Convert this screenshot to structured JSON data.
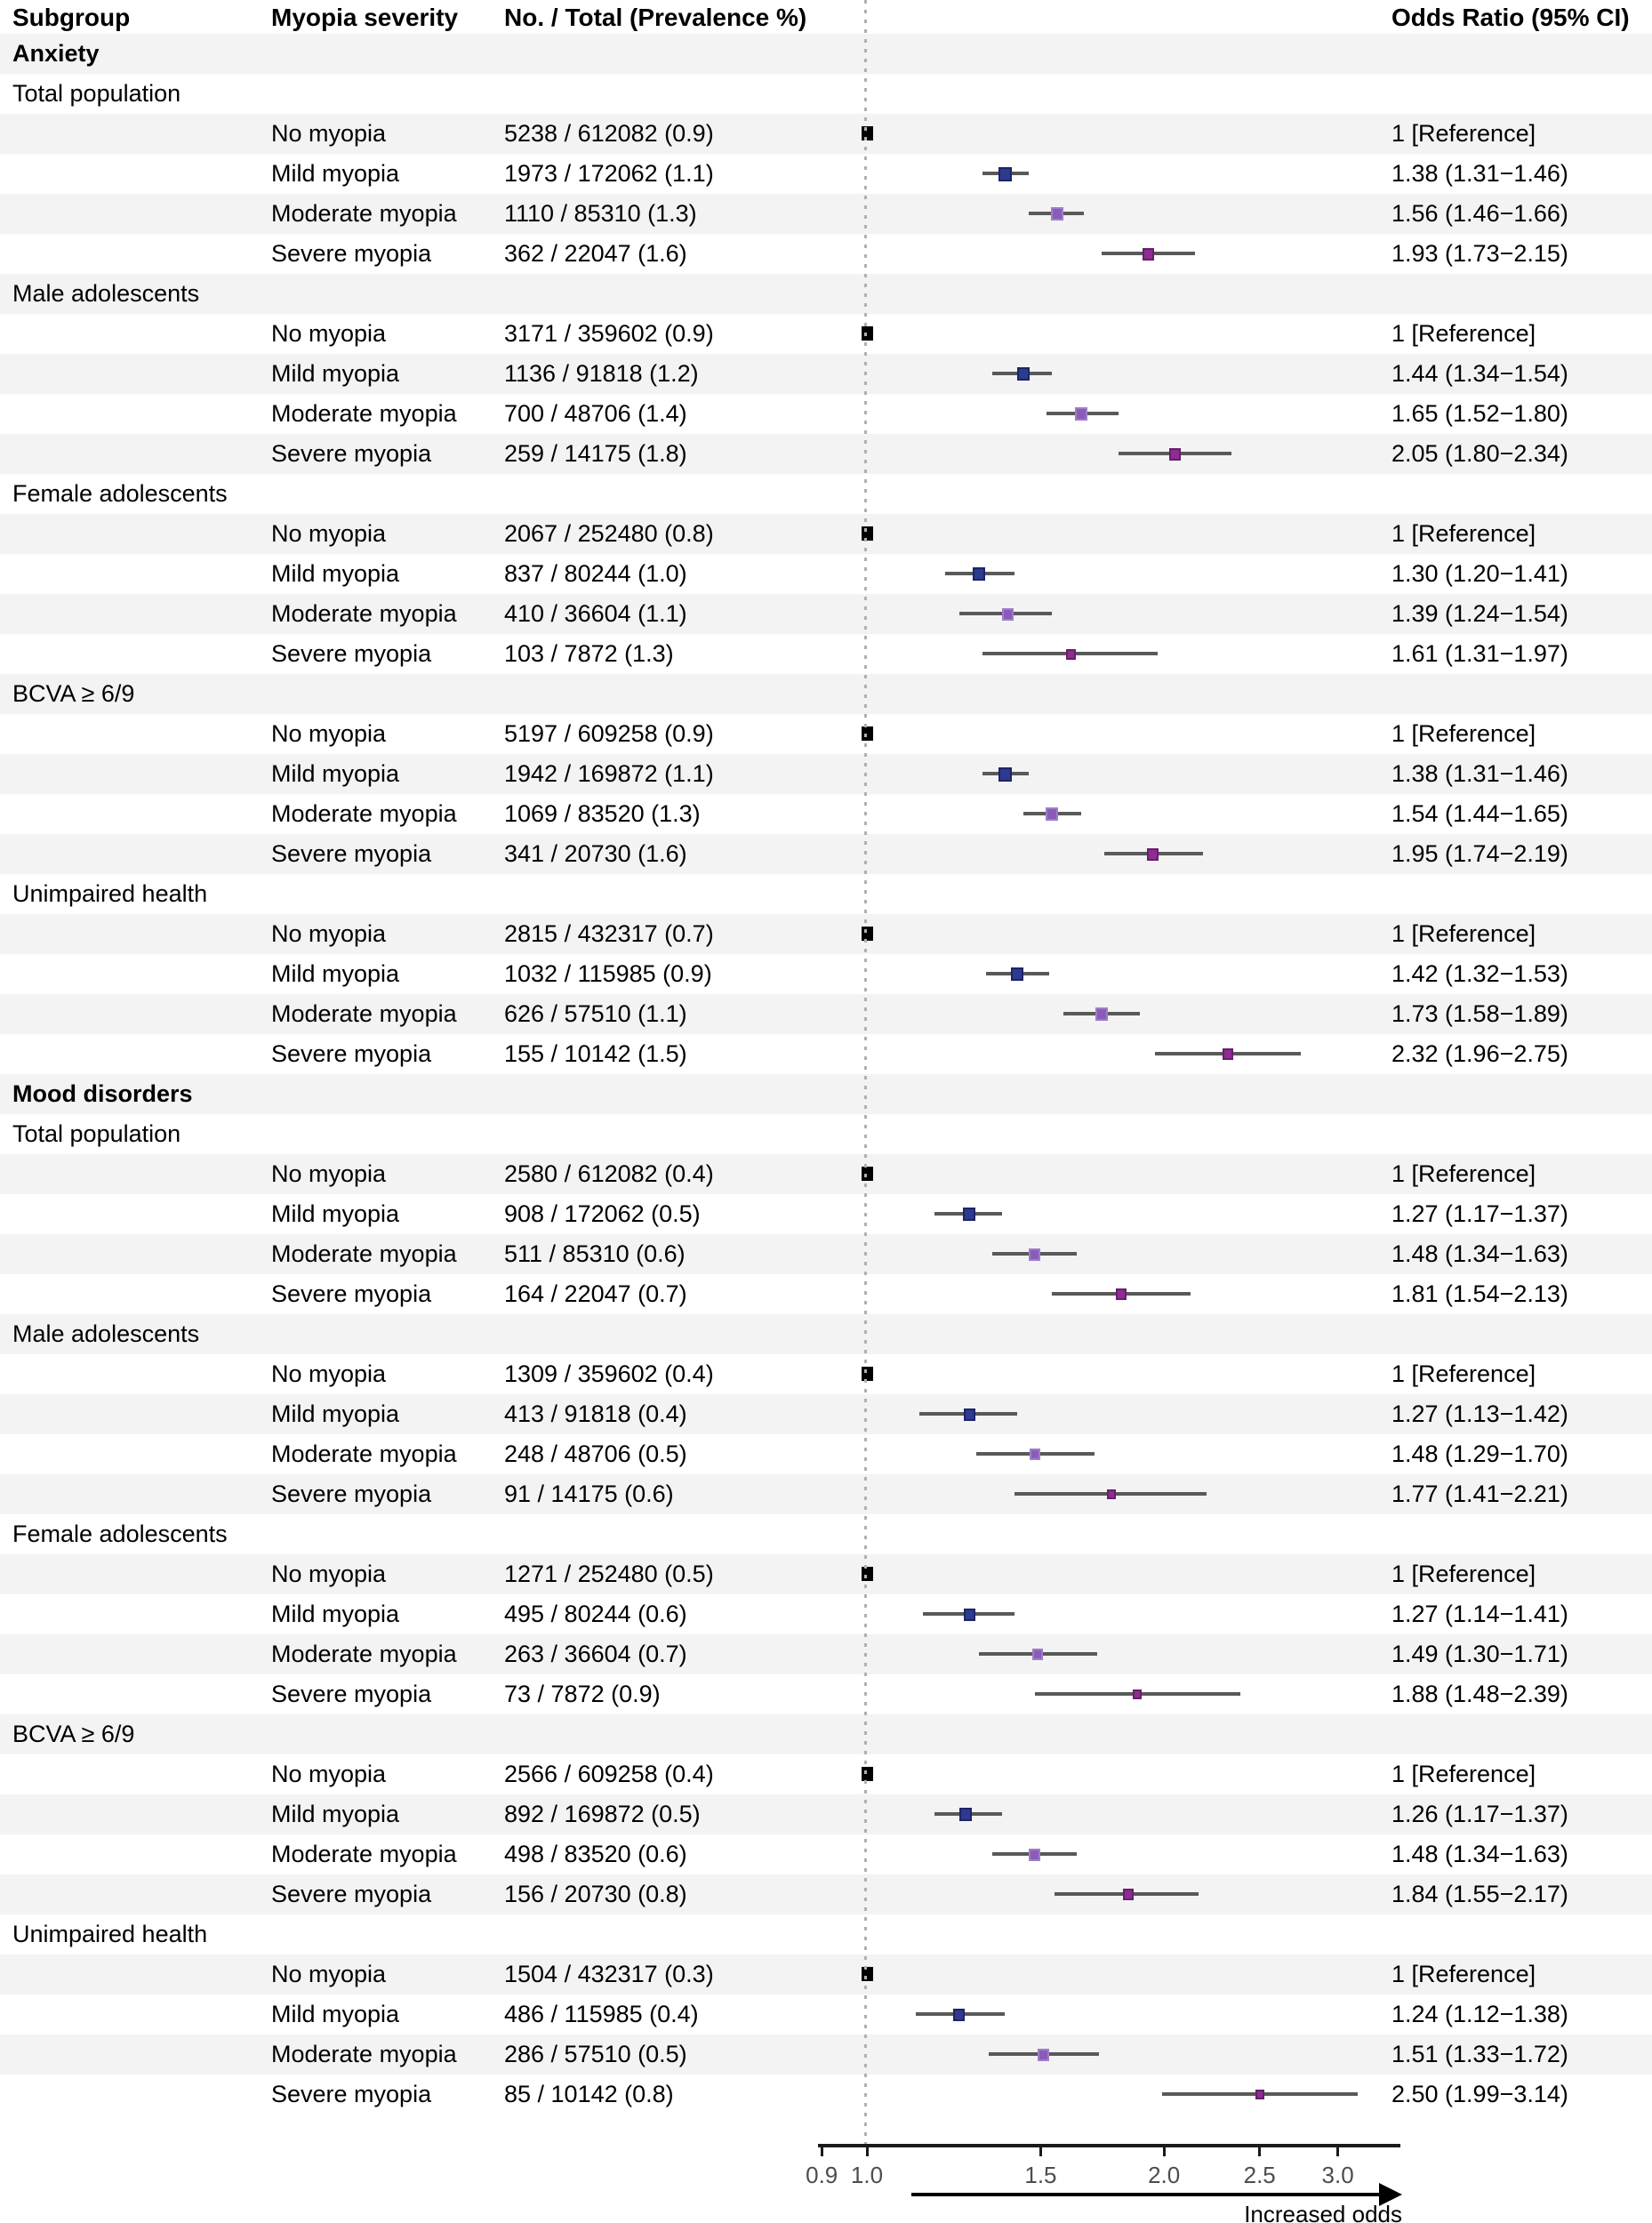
{
  "figure": {
    "columns": {
      "subgroup": "Subgroup",
      "severity": "Myopia severity",
      "no_total": "No. / Total (Prevalence %)",
      "odds_ratio": "Odds Ratio (95% CI)"
    },
    "footer": {
      "arrow_label": "Increased odds"
    }
  },
  "chart_data": {
    "type": "scatter",
    "variant": "forest-plot",
    "x_scale": "log",
    "x_ticks": [
      0.9,
      1.0,
      1.5,
      2.0,
      2.5,
      3.0
    ],
    "x_tick_labels": [
      "0.9",
      "1.0",
      "1.5",
      "2.0",
      "2.5",
      "3.0"
    ],
    "reference_line_value": 1.0,
    "direction_label": "Increased odds",
    "ci_line_color": "#595959",
    "stripe_color": "#f4f3f4",
    "reference_line_color": "#b0b0b0",
    "severity_colors": {
      "No myopia": {
        "fill": "#000000",
        "border": "#000000"
      },
      "Mild myopia": {
        "fill": "#2d3a90",
        "border": "#1c2566"
      },
      "Moderate myopia": {
        "fill": "#8a5cb8",
        "border": "#9e7ecb"
      },
      "Severe myopia": {
        "fill": "#8f2b94",
        "border": "#671f6b"
      }
    },
    "rows": [
      {
        "kind": "section",
        "label": "Anxiety"
      },
      {
        "kind": "subgroup",
        "label": "Total population"
      },
      {
        "kind": "data",
        "severity": "No myopia",
        "counts": "5238 / 612082 (0.9)",
        "or_label": "1 [Reference]",
        "reference": true,
        "or": 1.0
      },
      {
        "kind": "data",
        "severity": "Mild myopia",
        "counts": "1973 / 172062 (1.1)",
        "or_label": "1.38 (1.31−1.46)",
        "or": 1.38,
        "lo": 1.31,
        "hi": 1.46
      },
      {
        "kind": "data",
        "severity": "Moderate myopia",
        "counts": "1110 / 85310 (1.3)",
        "or_label": "1.56 (1.46−1.66)",
        "or": 1.56,
        "lo": 1.46,
        "hi": 1.66
      },
      {
        "kind": "data",
        "severity": "Severe myopia",
        "counts": "362 / 22047 (1.6)",
        "or_label": "1.93 (1.73−2.15)",
        "or": 1.93,
        "lo": 1.73,
        "hi": 2.15
      },
      {
        "kind": "subgroup",
        "label": "Male adolescents"
      },
      {
        "kind": "data",
        "severity": "No myopia",
        "counts": "3171 / 359602 (0.9)",
        "or_label": "1 [Reference]",
        "reference": true,
        "or": 1.0
      },
      {
        "kind": "data",
        "severity": "Mild myopia",
        "counts": "1136 / 91818 (1.2)",
        "or_label": "1.44 (1.34−1.54)",
        "or": 1.44,
        "lo": 1.34,
        "hi": 1.54
      },
      {
        "kind": "data",
        "severity": "Moderate myopia",
        "counts": "700 / 48706 (1.4)",
        "or_label": "1.65 (1.52−1.80)",
        "or": 1.65,
        "lo": 1.52,
        "hi": 1.8
      },
      {
        "kind": "data",
        "severity": "Severe myopia",
        "counts": "259 / 14175 (1.8)",
        "or_label": "2.05 (1.80−2.34)",
        "or": 2.05,
        "lo": 1.8,
        "hi": 2.34
      },
      {
        "kind": "subgroup",
        "label": "Female adolescents"
      },
      {
        "kind": "data",
        "severity": "No myopia",
        "counts": "2067 / 252480 (0.8)",
        "or_label": "1 [Reference]",
        "reference": true,
        "or": 1.0
      },
      {
        "kind": "data",
        "severity": "Mild myopia",
        "counts": "837 / 80244 (1.0)",
        "or_label": "1.30 (1.20−1.41)",
        "or": 1.3,
        "lo": 1.2,
        "hi": 1.41
      },
      {
        "kind": "data",
        "severity": "Moderate myopia",
        "counts": "410 / 36604 (1.1)",
        "or_label": "1.39 (1.24−1.54)",
        "or": 1.39,
        "lo": 1.24,
        "hi": 1.54
      },
      {
        "kind": "data",
        "severity": "Severe myopia",
        "counts": "103 / 7872 (1.3)",
        "or_label": "1.61 (1.31−1.97)",
        "or": 1.61,
        "lo": 1.31,
        "hi": 1.97
      },
      {
        "kind": "subgroup",
        "label": "BCVA ≥ 6/9"
      },
      {
        "kind": "data",
        "severity": "No myopia",
        "counts": "5197 / 609258 (0.9)",
        "or_label": "1 [Reference]",
        "reference": true,
        "or": 1.0
      },
      {
        "kind": "data",
        "severity": "Mild myopia",
        "counts": "1942 / 169872 (1.1)",
        "or_label": "1.38 (1.31−1.46)",
        "or": 1.38,
        "lo": 1.31,
        "hi": 1.46
      },
      {
        "kind": "data",
        "severity": "Moderate myopia",
        "counts": "1069 / 83520 (1.3)",
        "or_label": "1.54 (1.44−1.65)",
        "or": 1.54,
        "lo": 1.44,
        "hi": 1.65
      },
      {
        "kind": "data",
        "severity": "Severe myopia",
        "counts": "341 / 20730 (1.6)",
        "or_label": "1.95 (1.74−2.19)",
        "or": 1.95,
        "lo": 1.74,
        "hi": 2.19
      },
      {
        "kind": "subgroup",
        "label": "Unimpaired health"
      },
      {
        "kind": "data",
        "severity": "No myopia",
        "counts": "2815 / 432317 (0.7)",
        "or_label": "1 [Reference]",
        "reference": true,
        "or": 1.0
      },
      {
        "kind": "data",
        "severity": "Mild myopia",
        "counts": "1032 / 115985 (0.9)",
        "or_label": "1.42 (1.32−1.53)",
        "or": 1.42,
        "lo": 1.32,
        "hi": 1.53
      },
      {
        "kind": "data",
        "severity": "Moderate myopia",
        "counts": "626 / 57510 (1.1)",
        "or_label": "1.73 (1.58−1.89)",
        "or": 1.73,
        "lo": 1.58,
        "hi": 1.89
      },
      {
        "kind": "data",
        "severity": "Severe myopia",
        "counts": "155 / 10142 (1.5)",
        "or_label": "2.32 (1.96−2.75)",
        "or": 2.32,
        "lo": 1.96,
        "hi": 2.75
      },
      {
        "kind": "section",
        "label": "Mood disorders"
      },
      {
        "kind": "subgroup",
        "label": "Total population"
      },
      {
        "kind": "data",
        "severity": "No myopia",
        "counts": "2580 / 612082 (0.4)",
        "or_label": "1 [Reference]",
        "reference": true,
        "or": 1.0
      },
      {
        "kind": "data",
        "severity": "Mild myopia",
        "counts": "908 / 172062 (0.5)",
        "or_label": "1.27 (1.17−1.37)",
        "or": 1.27,
        "lo": 1.17,
        "hi": 1.37
      },
      {
        "kind": "data",
        "severity": "Moderate myopia",
        "counts": "511 / 85310 (0.6)",
        "or_label": "1.48 (1.34−1.63)",
        "or": 1.48,
        "lo": 1.34,
        "hi": 1.63
      },
      {
        "kind": "data",
        "severity": "Severe myopia",
        "counts": "164 / 22047 (0.7)",
        "or_label": "1.81 (1.54−2.13)",
        "or": 1.81,
        "lo": 1.54,
        "hi": 2.13
      },
      {
        "kind": "subgroup",
        "label": "Male adolescents"
      },
      {
        "kind": "data",
        "severity": "No myopia",
        "counts": "1309 / 359602 (0.4)",
        "or_label": "1 [Reference]",
        "reference": true,
        "or": 1.0
      },
      {
        "kind": "data",
        "severity": "Mild myopia",
        "counts": "413 / 91818 (0.4)",
        "or_label": "1.27 (1.13−1.42)",
        "or": 1.27,
        "lo": 1.13,
        "hi": 1.42
      },
      {
        "kind": "data",
        "severity": "Moderate myopia",
        "counts": "248 / 48706 (0.5)",
        "or_label": "1.48 (1.29−1.70)",
        "or": 1.48,
        "lo": 1.29,
        "hi": 1.7
      },
      {
        "kind": "data",
        "severity": "Severe myopia",
        "counts": "91 / 14175 (0.6)",
        "or_label": "1.77 (1.41−2.21)",
        "or": 1.77,
        "lo": 1.41,
        "hi": 2.21
      },
      {
        "kind": "subgroup",
        "label": "Female adolescents"
      },
      {
        "kind": "data",
        "severity": "No myopia",
        "counts": "1271 / 252480 (0.5)",
        "or_label": "1 [Reference]",
        "reference": true,
        "or": 1.0
      },
      {
        "kind": "data",
        "severity": "Mild myopia",
        "counts": "495 / 80244 (0.6)",
        "or_label": "1.27 (1.14−1.41)",
        "or": 1.27,
        "lo": 1.14,
        "hi": 1.41
      },
      {
        "kind": "data",
        "severity": "Moderate myopia",
        "counts": "263 / 36604 (0.7)",
        "or_label": "1.49 (1.30−1.71)",
        "or": 1.49,
        "lo": 1.3,
        "hi": 1.71
      },
      {
        "kind": "data",
        "severity": "Severe myopia",
        "counts": "73 / 7872 (0.9)",
        "or_label": "1.88 (1.48−2.39)",
        "or": 1.88,
        "lo": 1.48,
        "hi": 2.39
      },
      {
        "kind": "subgroup",
        "label": "BCVA ≥ 6/9"
      },
      {
        "kind": "data",
        "severity": "No myopia",
        "counts": "2566 / 609258 (0.4)",
        "or_label": "1 [Reference]",
        "reference": true,
        "or": 1.0
      },
      {
        "kind": "data",
        "severity": "Mild myopia",
        "counts": "892 / 169872 (0.5)",
        "or_label": "1.26 (1.17−1.37)",
        "or": 1.26,
        "lo": 1.17,
        "hi": 1.37
      },
      {
        "kind": "data",
        "severity": "Moderate myopia",
        "counts": "498 / 83520 (0.6)",
        "or_label": "1.48 (1.34−1.63)",
        "or": 1.48,
        "lo": 1.34,
        "hi": 1.63
      },
      {
        "kind": "data",
        "severity": "Severe myopia",
        "counts": "156 / 20730 (0.8)",
        "or_label": "1.84 (1.55−2.17)",
        "or": 1.84,
        "lo": 1.55,
        "hi": 2.17
      },
      {
        "kind": "subgroup",
        "label": "Unimpaired health"
      },
      {
        "kind": "data",
        "severity": "No myopia",
        "counts": "1504 / 432317 (0.3)",
        "or_label": "1 [Reference]",
        "reference": true,
        "or": 1.0
      },
      {
        "kind": "data",
        "severity": "Mild myopia",
        "counts": "486 / 115985 (0.4)",
        "or_label": "1.24 (1.12−1.38)",
        "or": 1.24,
        "lo": 1.12,
        "hi": 1.38
      },
      {
        "kind": "data",
        "severity": "Moderate myopia",
        "counts": "286 / 57510 (0.5)",
        "or_label": "1.51 (1.33−1.72)",
        "or": 1.51,
        "lo": 1.33,
        "hi": 1.72
      },
      {
        "kind": "data",
        "severity": "Severe myopia",
        "counts": "85 / 10142 (0.8)",
        "or_label": "2.50 (1.99−3.14)",
        "or": 2.5,
        "lo": 1.99,
        "hi": 3.14
      }
    ]
  }
}
